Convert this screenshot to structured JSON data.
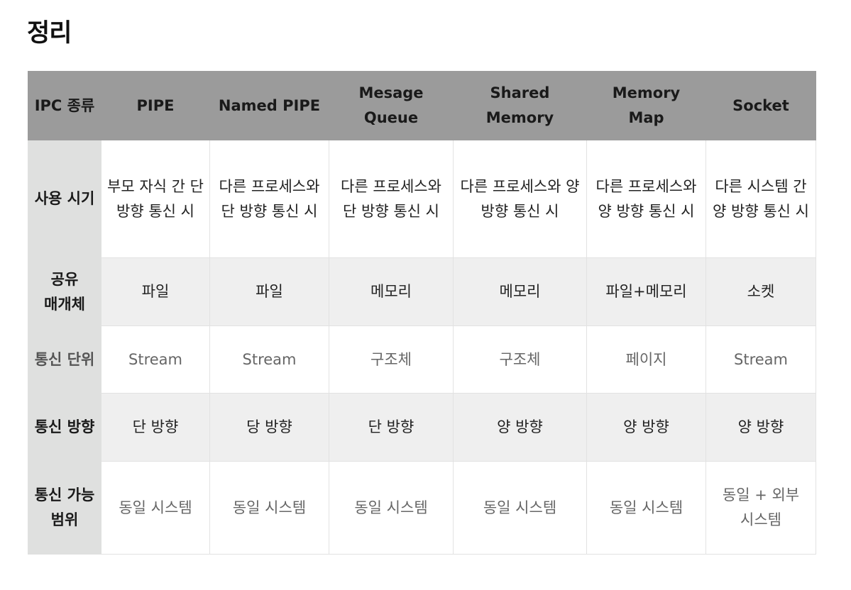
{
  "title": "정리",
  "table": {
    "headers": [
      "IPC 종류",
      "PIPE",
      "Named PIPE",
      "Mesage Queue",
      "Shared Memory",
      "Memory Map",
      "Socket"
    ],
    "rows": [
      {
        "label": "사용 시기",
        "cells": [
          "부모 자식 간 단 방향 통신 시",
          "다른 프로세스와 단 방향 통신 시",
          "다른 프로세스와 단 방향 통신 시",
          "다른 프로세스와 양 방향 통신 시",
          "다른 프로세스와 양 방향 통신 시",
          "다른 시스템 간 양 방향 통신 시"
        ]
      },
      {
        "label": "공유 매개체",
        "cells": [
          "파일",
          "파일",
          "메모리",
          "메모리",
          "파일+메모리",
          "소켓"
        ]
      },
      {
        "label": "통신 단위",
        "cells": [
          "Stream",
          "Stream",
          "구조체",
          "구조체",
          "페이지",
          "Stream"
        ]
      },
      {
        "label": "통신 방향",
        "cells": [
          "단 방향",
          "당 방향",
          "단 방향",
          "양 방향",
          "양 방향",
          "양 방향"
        ]
      },
      {
        "label": "통신 가능 범위",
        "cells": [
          "동일 시스템",
          "동일 시스템",
          "동일 시스템",
          "동일 시스템",
          "동일 시스템",
          "동일 + 외부 시스템"
        ]
      }
    ]
  }
}
